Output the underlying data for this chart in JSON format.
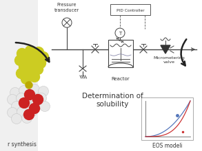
{
  "bg_color": "#f0f0f0",
  "center_text1": "Determination of",
  "center_text2": "solubility",
  "bottom_left_text": "r synthesis",
  "bottom_right_text": "EOS modeli",
  "pressure_transducer_label": "Pressure\ntransducer",
  "pid_label": "PID Controller",
  "reactor_label": "Reactor",
  "micrometering_label": "Micrometering\nvalve",
  "curve_blue": "#5577bb",
  "curve_red": "#cc3333",
  "molecule_yellow": "#cccc22",
  "molecule_yellow2": "#aaaa00",
  "molecule_gold": "#bbaa00",
  "molecule_red": "#cc2222",
  "molecule_white": "#e8e8e8",
  "arrow_color": "#222222",
  "line_color": "#444444",
  "text_color": "#333333"
}
